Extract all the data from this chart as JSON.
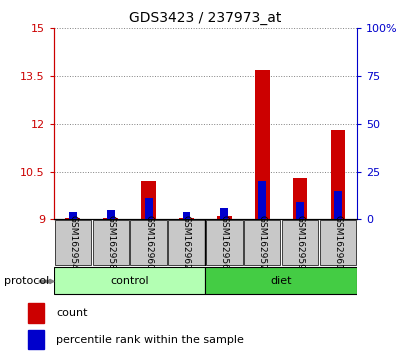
{
  "title": "GDS3423 / 237973_at",
  "samples": [
    "GSM162954",
    "GSM162958",
    "GSM162960",
    "GSM162962",
    "GSM162956",
    "GSM162957",
    "GSM162959",
    "GSM162961"
  ],
  "groups": [
    "control",
    "control",
    "control",
    "control",
    "diet",
    "diet",
    "diet",
    "diet"
  ],
  "group_labels": [
    "control",
    "diet"
  ],
  "group_colors": [
    "#b3ffb3",
    "#44cc44"
  ],
  "red_values": [
    9.05,
    9.05,
    10.2,
    9.05,
    9.1,
    13.7,
    10.3,
    11.8
  ],
  "blue_values": [
    4,
    5,
    11,
    4,
    6,
    20,
    9,
    15
  ],
  "red_base": 9.0,
  "ylim_left": [
    9,
    15
  ],
  "ylim_right": [
    0,
    100
  ],
  "yticks_left": [
    9,
    10.5,
    12,
    13.5,
    15
  ],
  "yticks_right": [
    0,
    25,
    50,
    75,
    100
  ],
  "ytick_labels_left": [
    "9",
    "10.5",
    "12",
    "13.5",
    "15"
  ],
  "ytick_labels_right": [
    "0",
    "25",
    "50",
    "75",
    "100%"
  ],
  "left_axis_color": "#cc0000",
  "right_axis_color": "#0000cc",
  "bar_red_color": "#cc0000",
  "bar_blue_color": "#0000cc",
  "protocol_label": "protocol",
  "legend_count": "count",
  "legend_percentile": "percentile rank within the sample",
  "plot_bg": "#ffffff",
  "sample_bg": "#c8c8c8"
}
